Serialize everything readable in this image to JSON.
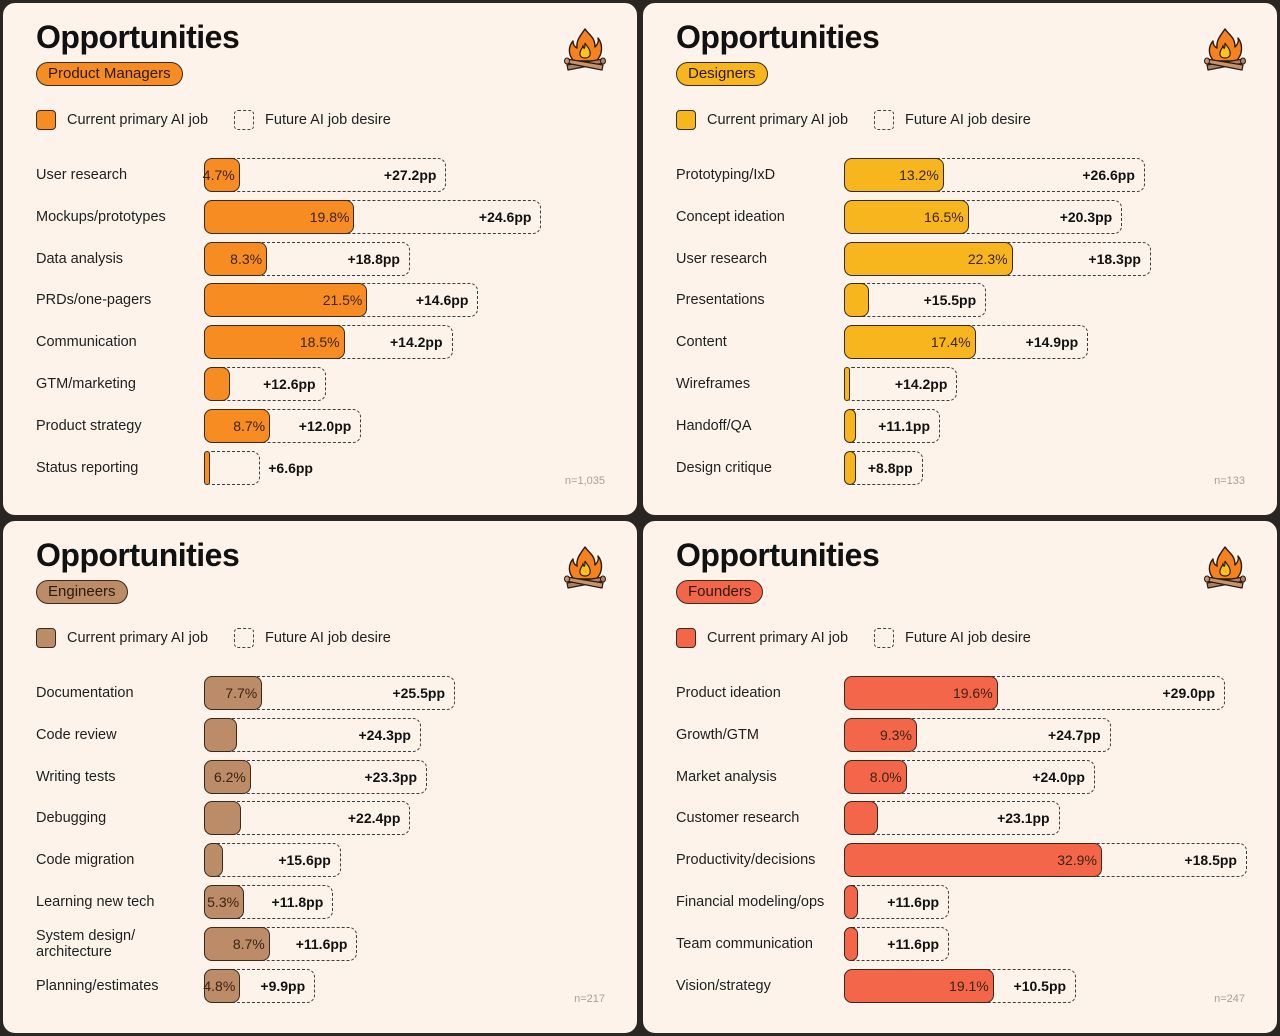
{
  "legend": {
    "current_label": "Current primary AI job",
    "future_label": "Future AI job desire"
  },
  "panels": [
    {
      "title": "Opportunities",
      "segment": "Product Managers",
      "color": "#f78c23",
      "n_label": "n=1,035",
      "rows": [
        {
          "label": "User research",
          "current": 4.7,
          "current_label": "4.7%",
          "delta": 27.2,
          "delta_label": "+27.2pp"
        },
        {
          "label": "Mockups/prototypes",
          "current": 19.8,
          "current_label": "19.8%",
          "delta": 24.6,
          "delta_label": "+24.6pp"
        },
        {
          "label": "Data analysis",
          "current": 8.3,
          "current_label": "8.3%",
          "delta": 18.8,
          "delta_label": "+18.8pp"
        },
        {
          "label": "PRDs/one-pagers",
          "current": 21.5,
          "current_label": "21.5%",
          "delta": 14.6,
          "delta_label": "+14.6pp"
        },
        {
          "label": "Communication",
          "current": 18.5,
          "current_label": "18.5%",
          "delta": 14.2,
          "delta_label": "+14.2pp"
        },
        {
          "label": "GTM/marketing",
          "current": 3.4,
          "current_label": "",
          "delta": 12.6,
          "delta_label": "+12.6pp"
        },
        {
          "label": "Product strategy",
          "current": 8.7,
          "current_label": "8.7%",
          "delta": 12.0,
          "delta_label": "+12.0pp"
        },
        {
          "label": "Status reporting",
          "current": 0.8,
          "current_label": "",
          "delta": 6.6,
          "delta_label": "+6.6pp"
        }
      ]
    },
    {
      "title": "Opportunities",
      "segment": "Designers",
      "color": "#f8b61e",
      "n_label": "n=133",
      "rows": [
        {
          "label": "Prototyping/IxD",
          "current": 13.2,
          "current_label": "13.2%",
          "delta": 26.6,
          "delta_label": "+26.6pp"
        },
        {
          "label": "Concept ideation",
          "current": 16.5,
          "current_label": "16.5%",
          "delta": 20.3,
          "delta_label": "+20.3pp"
        },
        {
          "label": "User research",
          "current": 22.3,
          "current_label": "22.3%",
          "delta": 18.3,
          "delta_label": "+18.3pp"
        },
        {
          "label": "Presentations",
          "current": 3.3,
          "current_label": "",
          "delta": 15.5,
          "delta_label": "+15.5pp"
        },
        {
          "label": "Content",
          "current": 17.4,
          "current_label": "17.4%",
          "delta": 14.9,
          "delta_label": "+14.9pp"
        },
        {
          "label": "Wireframes",
          "current": 0.8,
          "current_label": "",
          "delta": 14.2,
          "delta_label": "+14.2pp"
        },
        {
          "label": "Handoff/QA",
          "current": 1.6,
          "current_label": "",
          "delta": 11.1,
          "delta_label": "+11.1pp"
        },
        {
          "label": "Design critique",
          "current": 1.6,
          "current_label": "",
          "delta": 8.8,
          "delta_label": "+8.8pp"
        }
      ]
    },
    {
      "title": "Opportunities",
      "segment": "Engineers",
      "color": "#bc8c69",
      "n_label": "n=217",
      "rows": [
        {
          "label": "Documentation",
          "current": 7.7,
          "current_label": "7.7%",
          "delta": 25.5,
          "delta_label": "+25.5pp"
        },
        {
          "label": "Code review",
          "current": 4.4,
          "current_label": "",
          "delta": 24.3,
          "delta_label": "+24.3pp"
        },
        {
          "label": "Writing tests",
          "current": 6.2,
          "current_label": "6.2%",
          "delta": 23.3,
          "delta_label": "+23.3pp"
        },
        {
          "label": "Debugging",
          "current": 4.9,
          "current_label": "",
          "delta": 22.4,
          "delta_label": "+22.4pp"
        },
        {
          "label": "Code migration",
          "current": 2.5,
          "current_label": "",
          "delta": 15.6,
          "delta_label": "+15.6pp"
        },
        {
          "label": "Learning new tech",
          "current": 5.3,
          "current_label": "5.3%",
          "delta": 11.8,
          "delta_label": "+11.8pp"
        },
        {
          "label": "System design/ architecture",
          "current": 8.7,
          "current_label": "8.7%",
          "delta": 11.6,
          "delta_label": "+11.6pp"
        },
        {
          "label": "Planning/estimates",
          "current": 4.8,
          "current_label": "4.8%",
          "delta": 9.9,
          "delta_label": "+9.9pp"
        }
      ]
    },
    {
      "title": "Opportunities",
      "segment": "Founders",
      "color": "#f4664a",
      "n_label": "n=247",
      "rows": [
        {
          "label": "Product ideation",
          "current": 19.6,
          "current_label": "19.6%",
          "delta": 29.0,
          "delta_label": "+29.0pp"
        },
        {
          "label": "Growth/GTM",
          "current": 9.3,
          "current_label": "9.3%",
          "delta": 24.7,
          "delta_label": "+24.7pp"
        },
        {
          "label": "Market analysis",
          "current": 8.0,
          "current_label": "8.0%",
          "delta": 24.0,
          "delta_label": "+24.0pp"
        },
        {
          "label": "Customer research",
          "current": 4.4,
          "current_label": "",
          "delta": 23.1,
          "delta_label": "+23.1pp"
        },
        {
          "label": "Productivity/decisions",
          "current": 32.9,
          "current_label": "32.9%",
          "delta": 18.5,
          "delta_label": "+18.5pp"
        },
        {
          "label": "Financial modeling/ops",
          "current": 1.8,
          "current_label": "",
          "delta": 11.6,
          "delta_label": "+11.6pp"
        },
        {
          "label": "Team communication",
          "current": 1.8,
          "current_label": "",
          "delta": 11.6,
          "delta_label": "+11.6pp"
        },
        {
          "label": "Vision/strategy",
          "current": 19.1,
          "current_label": "19.1%",
          "delta": 10.5,
          "delta_label": "+10.5pp"
        }
      ]
    }
  ],
  "chart_data": [
    {
      "type": "bar",
      "title": "Opportunities — Product Managers",
      "categories": [
        "User research",
        "Mockups/prototypes",
        "Data analysis",
        "PRDs/one-pagers",
        "Communication",
        "GTM/marketing",
        "Product strategy",
        "Status reporting"
      ],
      "series": [
        {
          "name": "Current primary AI job (%)",
          "values": [
            4.7,
            19.8,
            8.3,
            21.5,
            18.5,
            3.4,
            8.7,
            0.8
          ]
        },
        {
          "name": "Future AI job desire (+pp)",
          "values": [
            27.2,
            24.6,
            18.8,
            14.6,
            14.2,
            12.6,
            12.0,
            6.6
          ]
        }
      ],
      "stacked": true,
      "orientation": "horizontal",
      "legend": "top-left",
      "grid": false,
      "note": "n=1,035"
    },
    {
      "type": "bar",
      "title": "Opportunities — Designers",
      "categories": [
        "Prototyping/IxD",
        "Concept ideation",
        "User research",
        "Presentations",
        "Content",
        "Wireframes",
        "Handoff/QA",
        "Design critique"
      ],
      "series": [
        {
          "name": "Current primary AI job (%)",
          "values": [
            13.2,
            16.5,
            22.3,
            3.3,
            17.4,
            0.8,
            1.6,
            1.6
          ]
        },
        {
          "name": "Future AI job desire (+pp)",
          "values": [
            26.6,
            20.3,
            18.3,
            15.5,
            14.9,
            14.2,
            11.1,
            8.8
          ]
        }
      ],
      "stacked": true,
      "orientation": "horizontal",
      "legend": "top-left",
      "grid": false,
      "note": "n=133"
    },
    {
      "type": "bar",
      "title": "Opportunities — Engineers",
      "categories": [
        "Documentation",
        "Code review",
        "Writing tests",
        "Debugging",
        "Code migration",
        "Learning new tech",
        "System design/architecture",
        "Planning/estimates"
      ],
      "series": [
        {
          "name": "Current primary AI job (%)",
          "values": [
            7.7,
            4.4,
            6.2,
            4.9,
            2.5,
            5.3,
            8.7,
            4.8
          ]
        },
        {
          "name": "Future AI job desire (+pp)",
          "values": [
            25.5,
            24.3,
            23.3,
            22.4,
            15.6,
            11.8,
            11.6,
            9.9
          ]
        }
      ],
      "stacked": true,
      "orientation": "horizontal",
      "legend": "top-left",
      "grid": false,
      "note": "n=217"
    },
    {
      "type": "bar",
      "title": "Opportunities — Founders",
      "categories": [
        "Product ideation",
        "Growth/GTM",
        "Market analysis",
        "Customer research",
        "Productivity/decisions",
        "Financial modeling/ops",
        "Team communication",
        "Vision/strategy"
      ],
      "series": [
        {
          "name": "Current primary AI job (%)",
          "values": [
            19.6,
            9.3,
            8.0,
            4.4,
            32.9,
            1.8,
            1.8,
            19.1
          ]
        },
        {
          "name": "Future AI job desire (+pp)",
          "values": [
            29.0,
            24.7,
            24.0,
            23.1,
            18.5,
            11.6,
            11.6,
            10.5
          ]
        }
      ],
      "stacked": true,
      "orientation": "horizontal",
      "legend": "top-left",
      "grid": false,
      "note": "n=247"
    }
  ]
}
